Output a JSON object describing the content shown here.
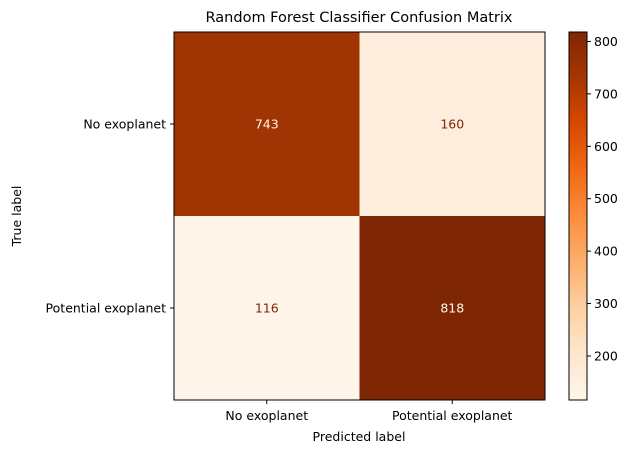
{
  "chart_data": {
    "type": "heatmap",
    "title": "Random Forest Classifier Confusion Matrix",
    "xlabel": "Predicted label",
    "ylabel": "True label",
    "x_categories": [
      "No exoplanet",
      "Potential exoplanet"
    ],
    "y_categories": [
      "No exoplanet",
      "Potential exoplanet"
    ],
    "values": [
      [
        743,
        160
      ],
      [
        116,
        818
      ]
    ],
    "colormap": "Oranges",
    "colorbar": {
      "range": [
        116,
        818
      ],
      "ticks": [
        200,
        300,
        400,
        500,
        600,
        700,
        800
      ]
    },
    "colors": {
      "cmap_low": "#fff5eb",
      "cmap_high": "#7f2704",
      "text_light": "#fff5eb",
      "text_dark": "#7f2704"
    }
  }
}
